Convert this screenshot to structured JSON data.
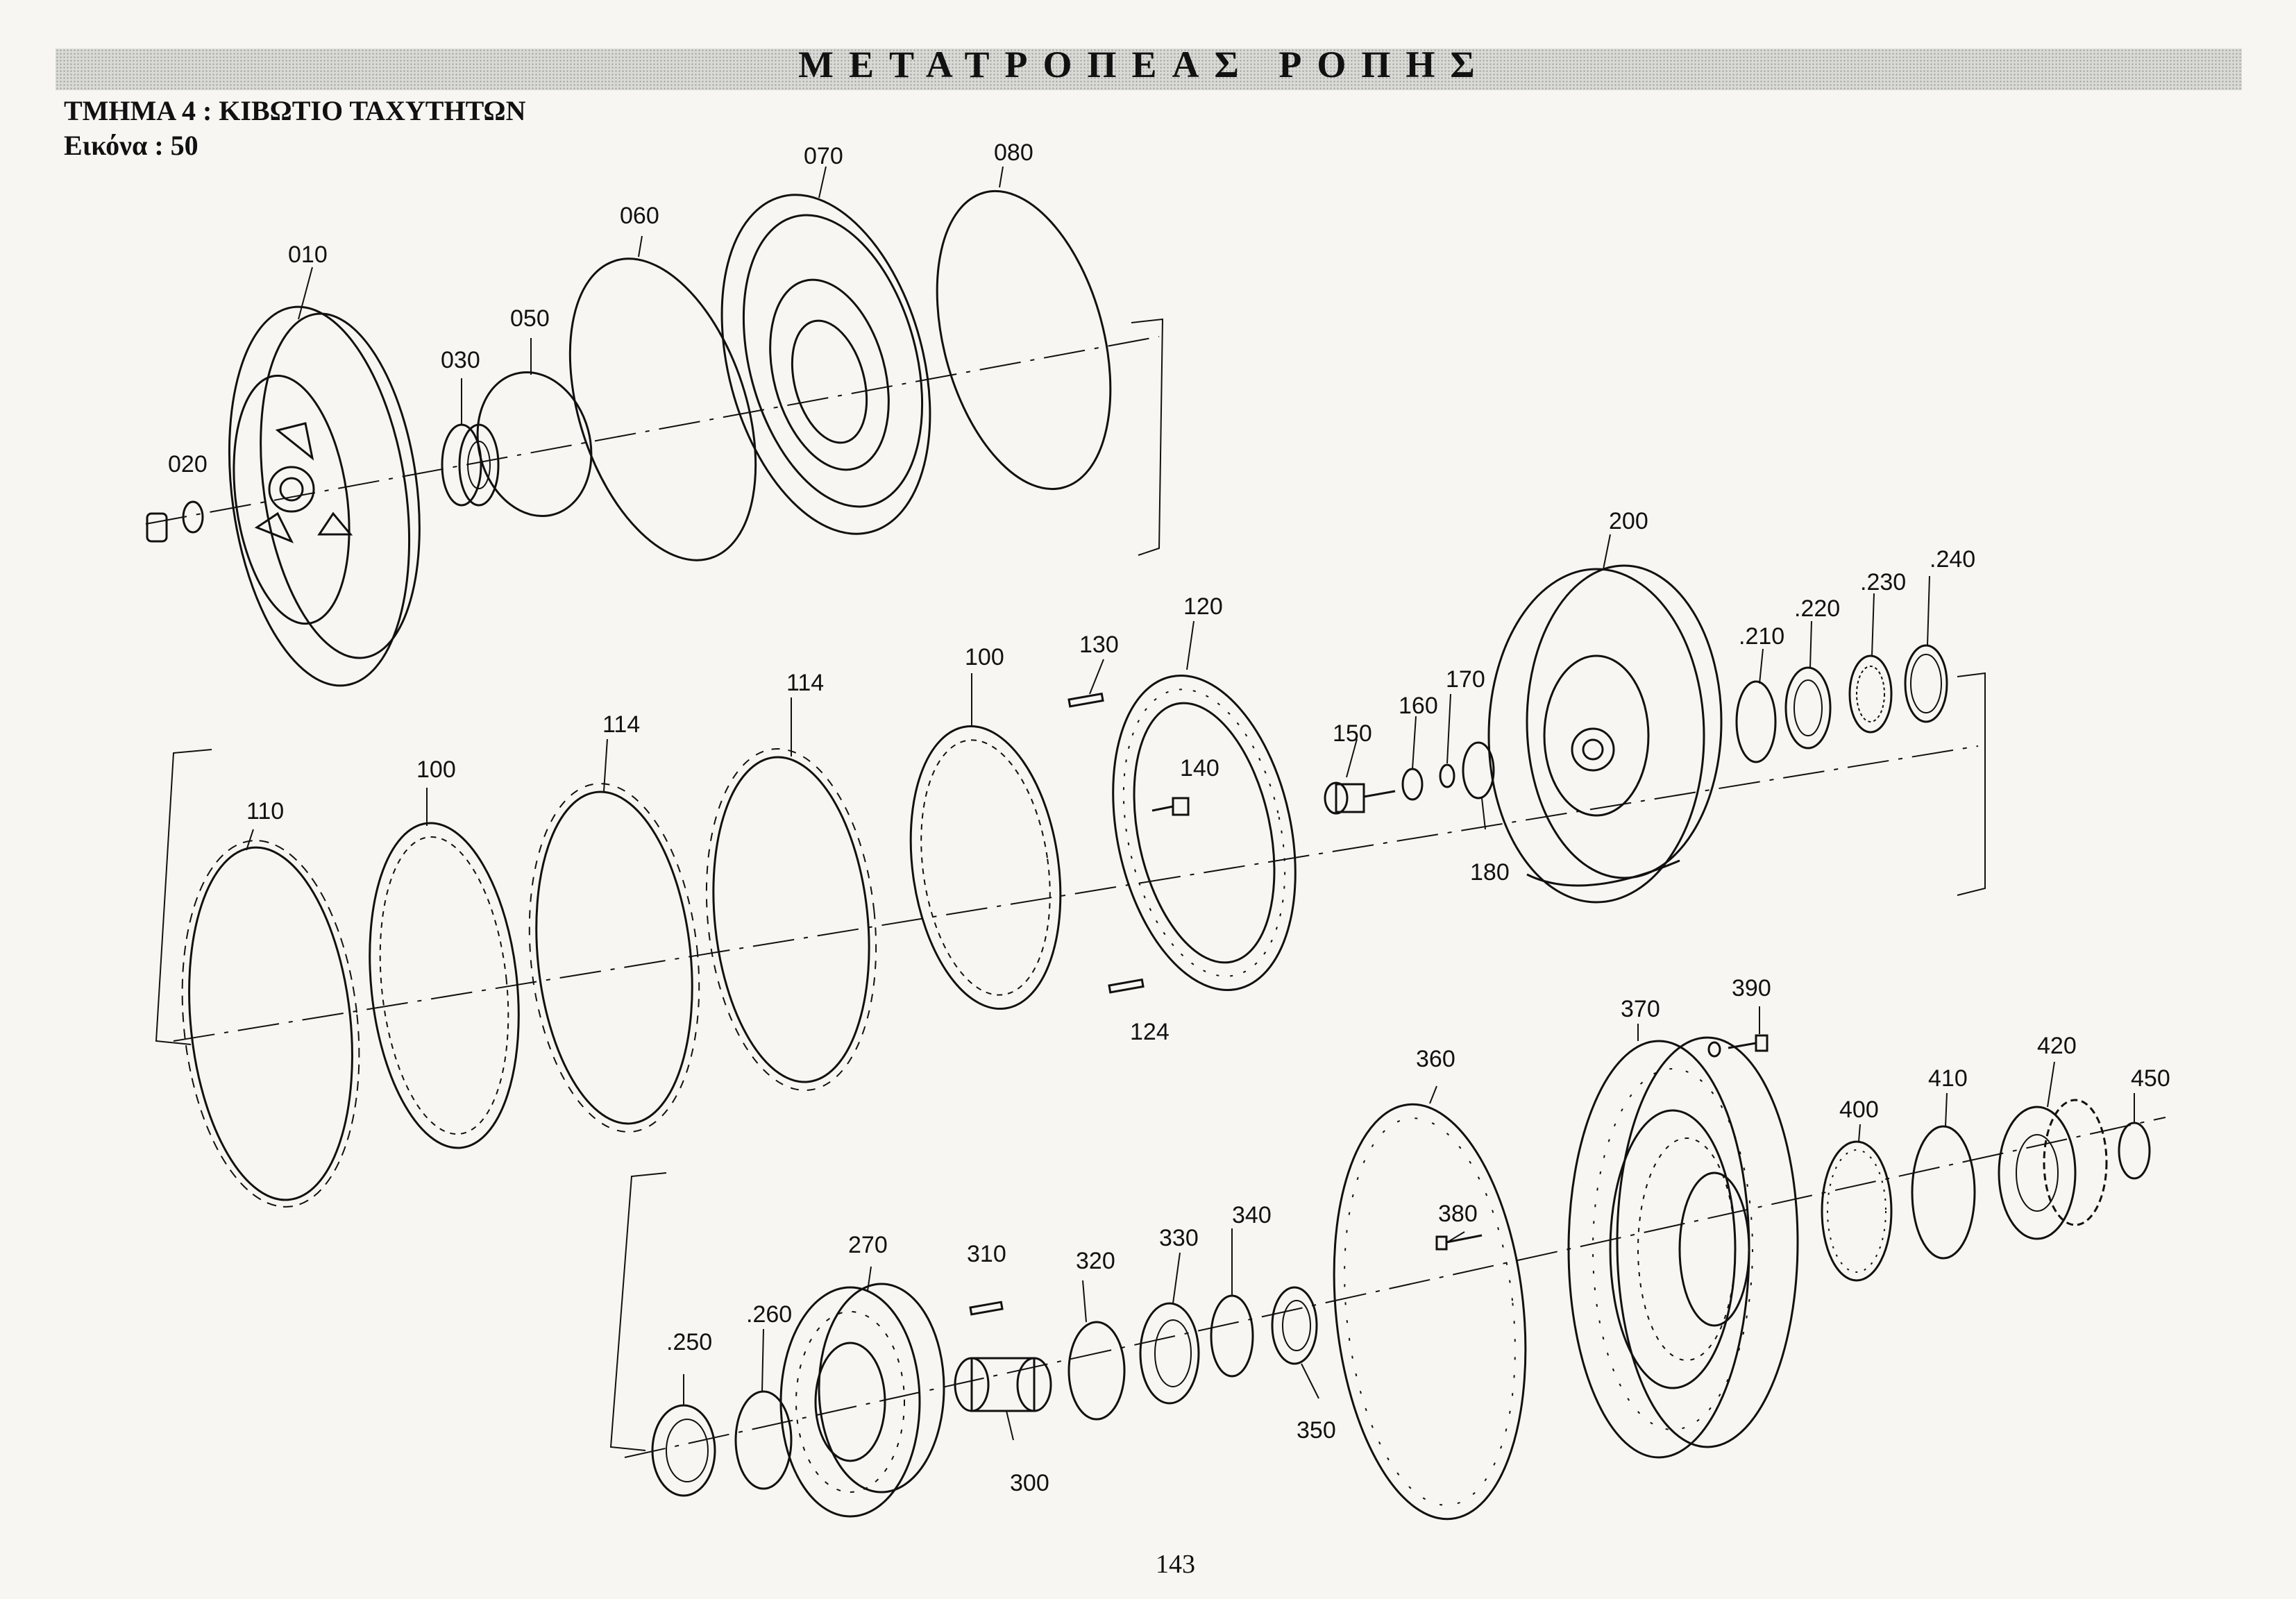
{
  "header": {
    "title": "ΜΕΤΑΤΡΟΠΕΑΣ ΡΟΠΗΣ",
    "section": "ΤΜΗΜΑ 4 : ΚΙΒΩΤΙΟ ΤΑΧΥΤΗΤΩΝ",
    "figure": "Εικόνα :  50"
  },
  "page_number": "143",
  "parts": {
    "p010": "010",
    "p020": "020",
    "p030": "030",
    "p050": "050",
    "p060": "060",
    "p070": "070",
    "p080": "080",
    "p110": "110",
    "p100a": "100",
    "p114a": "114",
    "p114b": "114",
    "p100b": "100",
    "p130": "130",
    "p120": "120",
    "p140": "140",
    "p124": "124",
    "p150": "150",
    "p160": "160",
    "p170": "170",
    "p180": "180",
    "p200": "200",
    "p210": ".210",
    "p220": ".220",
    "p230": ".230",
    "p240": ".240",
    "p250": ".250",
    "p260": ".260",
    "p270": "270",
    "p300": "300",
    "p310": "310",
    "p320": "320",
    "p330": "330",
    "p340": "340",
    "p350": "350",
    "p360": "360",
    "p370": "370",
    "p380": "380",
    "p390": "390",
    "p400": "400",
    "p410": "410",
    "p420": "420",
    "p450": "450"
  }
}
